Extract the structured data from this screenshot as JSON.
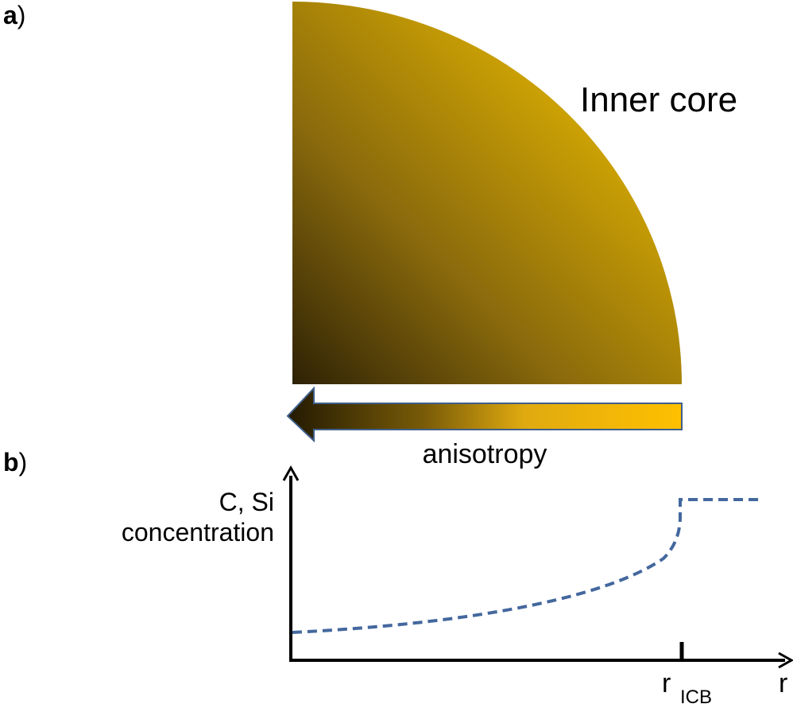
{
  "panels": [
    {
      "label": "a",
      "paren": ")",
      "title": "Inner core",
      "arrow_label": "anisotropy"
    },
    {
      "label": "b",
      "paren": ")",
      "y_label": [
        "C, Si",
        "concentration"
      ],
      "tick_label": "r",
      "tick_subscript": "ICB",
      "x_label": "r"
    }
  ]
}
